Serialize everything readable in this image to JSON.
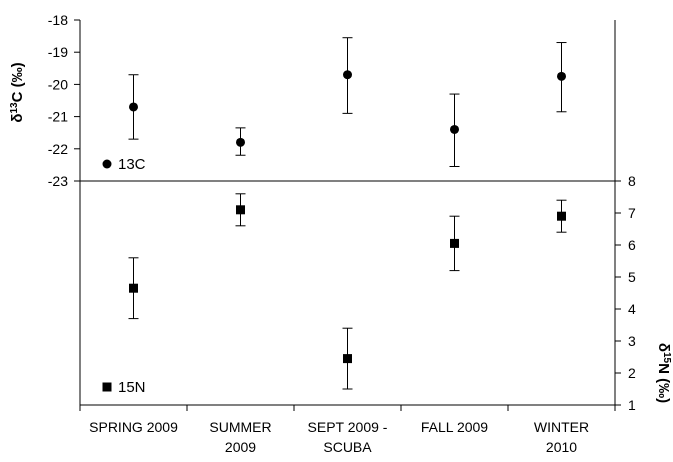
{
  "chart_data": {
    "type": "scatter",
    "categories": [
      [
        "SPRING 2009"
      ],
      [
        "SUMMER",
        "2009"
      ],
      [
        "SEPT 2009 -",
        "SCUBA"
      ],
      [
        "FALL 2009"
      ],
      [
        "WINTER",
        "2010"
      ]
    ],
    "panels": [
      {
        "id": "c13",
        "ylabel": "δ13C (‰)",
        "ylim": [
          -23,
          -18
        ],
        "yticks": [
          -18,
          -19,
          -20,
          -21,
          -22,
          -23
        ],
        "axis_side": "left",
        "series": [
          {
            "name": "13C",
            "marker": "circle",
            "values": [
              -20.7,
              -21.8,
              -19.7,
              -21.4,
              -19.75
            ],
            "err_low": [
              -21.7,
              -22.2,
              -20.9,
              -22.55,
              -20.85
            ],
            "err_high": [
              -19.7,
              -21.35,
              -18.55,
              -20.3,
              -18.7
            ]
          }
        ]
      },
      {
        "id": "n15",
        "ylabel": "δ15N (‰)",
        "ylim": [
          1,
          8
        ],
        "yticks": [
          1,
          2,
          3,
          4,
          5,
          6,
          7,
          8
        ],
        "axis_side": "right",
        "series": [
          {
            "name": "15N",
            "marker": "square",
            "values": [
              4.65,
              7.1,
              2.45,
              6.05,
              6.9
            ],
            "err_low": [
              3.7,
              6.6,
              1.5,
              5.2,
              6.4
            ],
            "err_high": [
              5.6,
              7.6,
              3.4,
              6.9,
              7.4
            ]
          }
        ]
      }
    ],
    "grid": false
  }
}
